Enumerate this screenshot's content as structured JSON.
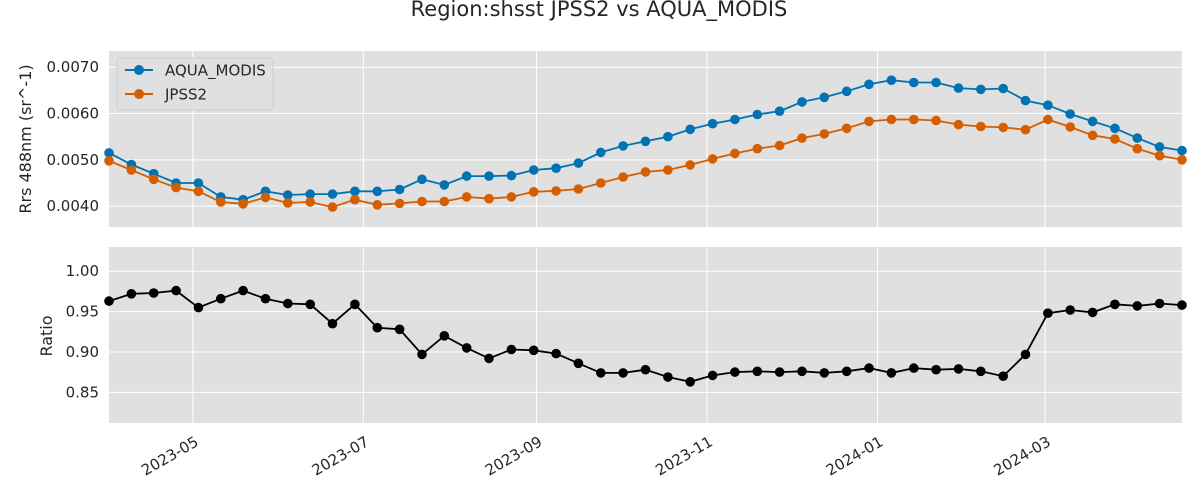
{
  "chart_data": {
    "type": "line",
    "title": "Region:shsst JPSS2 vs AQUA_MODIS",
    "colors": {
      "aqua": "#0173b2",
      "jpss2": "#d55e00",
      "ratio": "#000000",
      "panel_bg": "#e0e0e0",
      "grid": "#ffffff"
    },
    "x_dates": [
      "2023-04-01",
      "2023-04-09",
      "2023-04-17",
      "2023-04-25",
      "2023-05-03",
      "2023-05-11",
      "2023-05-19",
      "2023-05-27",
      "2023-06-04",
      "2023-06-12",
      "2023-06-20",
      "2023-06-28",
      "2023-07-06",
      "2023-07-14",
      "2023-07-22",
      "2023-07-30",
      "2023-08-07",
      "2023-08-15",
      "2023-08-23",
      "2023-08-31",
      "2023-09-08",
      "2023-09-16",
      "2023-09-24",
      "2023-10-02",
      "2023-10-10",
      "2023-10-18",
      "2023-10-26",
      "2023-11-03",
      "2023-11-11",
      "2023-11-19",
      "2023-11-27",
      "2023-12-05",
      "2023-12-13",
      "2023-12-21",
      "2023-12-29",
      "2024-01-06",
      "2024-01-14",
      "2024-01-22",
      "2024-01-30",
      "2024-02-07",
      "2024-02-15",
      "2024-02-23",
      "2024-03-02",
      "2024-03-10",
      "2024-03-18",
      "2024-03-26",
      "2024-04-03",
      "2024-04-11",
      "2024-04-19"
    ],
    "xlim": [
      "2023-04-01",
      "2024-04-19"
    ],
    "x_ticks": [
      "2023-05",
      "2023-07",
      "2023-09",
      "2023-11",
      "2024-01",
      "2024-03"
    ],
    "top": {
      "ylabel": "Rrs 488nm (sr^-1)",
      "ylim": [
        0.00355,
        0.00735
      ],
      "y_ticks": [
        "0.0040",
        "0.0050",
        "0.0060",
        "0.0070"
      ],
      "legend_position": "upper-left",
      "series": [
        {
          "name": "AQUA_MODIS",
          "values": [
            0.00515,
            0.0049,
            0.0047,
            0.0045,
            0.0045,
            0.0042,
            0.00414,
            0.00432,
            0.00424,
            0.00426,
            0.00426,
            0.00432,
            0.00432,
            0.00436,
            0.00458,
            0.00446,
            0.00465,
            0.00465,
            0.00466,
            0.00478,
            0.00482,
            0.00493,
            0.00516,
            0.0053,
            0.0054,
            0.0055,
            0.00566,
            0.00578,
            0.00587,
            0.00598,
            0.00605,
            0.00625,
            0.00635,
            0.00648,
            0.00663,
            0.00672,
            0.00667,
            0.00667,
            0.00655,
            0.00652,
            0.00654,
            0.00628,
            0.00618,
            0.00599,
            0.00583,
            0.00568,
            0.00547,
            0.00528,
            0.0052
          ]
        },
        {
          "name": "JPSS2",
          "values": [
            0.00498,
            0.00478,
            0.00458,
            0.0044,
            0.00432,
            0.00409,
            0.00405,
            0.00419,
            0.00407,
            0.00409,
            0.00398,
            0.00414,
            0.00403,
            0.00406,
            0.0041,
            0.0041,
            0.0042,
            0.00416,
            0.0042,
            0.00431,
            0.00433,
            0.00437,
            0.0045,
            0.00463,
            0.00474,
            0.00478,
            0.00489,
            0.00502,
            0.00514,
            0.00524,
            0.00531,
            0.00547,
            0.00556,
            0.00568,
            0.00583,
            0.00587,
            0.00587,
            0.00585,
            0.00576,
            0.00572,
            0.0057,
            0.00565,
            0.00587,
            0.00571,
            0.00553,
            0.00545,
            0.00524,
            0.00509,
            0.005
          ]
        }
      ]
    },
    "bottom": {
      "ylabel": "Ratio",
      "ylim": [
        0.812,
        1.03
      ],
      "y_ticks": [
        "0.85",
        "0.90",
        "0.95",
        "1.00"
      ],
      "series": [
        {
          "values": [
            0.963,
            0.972,
            0.973,
            0.976,
            0.955,
            0.966,
            0.976,
            0.966,
            0.96,
            0.959,
            0.935,
            0.959,
            0.93,
            0.928,
            0.897,
            0.92,
            0.905,
            0.892,
            0.903,
            0.902,
            0.898,
            0.886,
            0.874,
            0.874,
            0.878,
            0.869,
            0.863,
            0.871,
            0.875,
            0.876,
            0.875,
            0.876,
            0.874,
            0.876,
            0.88,
            0.874,
            0.88,
            0.878,
            0.879,
            0.876,
            0.87,
            0.897,
            0.948,
            0.952,
            0.949,
            0.959,
            0.957,
            0.96,
            0.958
          ]
        }
      ]
    }
  }
}
